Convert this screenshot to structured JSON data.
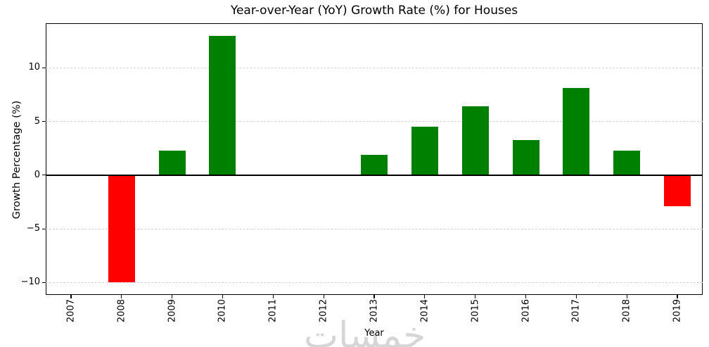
{
  "chart_data": {
    "type": "bar",
    "title": "Year-over-Year (YoY) Growth Rate (%) for Houses",
    "xlabel": "Year",
    "ylabel": "Growth Percentage (%)",
    "categories": [
      "2007",
      "2008",
      "2009",
      "2010",
      "2011",
      "2012",
      "2013",
      "2014",
      "2015",
      "2016",
      "2017",
      "2018",
      "2019"
    ],
    "values": [
      0,
      -10.0,
      2.3,
      13.0,
      0,
      0,
      1.9,
      4.5,
      6.4,
      3.3,
      8.1,
      2.3,
      -2.9
    ],
    "positive_color": "#008000",
    "negative_color": "#ff0000",
    "ylim": [
      -11.15,
      14.15
    ],
    "yticks": [
      -10,
      -5,
      0,
      5,
      10
    ],
    "ytick_labels": [
      "−10",
      "−5",
      "0",
      "5",
      "10"
    ],
    "x_tick_rotation_deg": 90,
    "grid": "horizontal-dashed",
    "gridline_color": "#d3d3d3",
    "zero_line_color": "#000000",
    "legend": null
  },
  "watermark": {
    "text": "خمسات"
  }
}
